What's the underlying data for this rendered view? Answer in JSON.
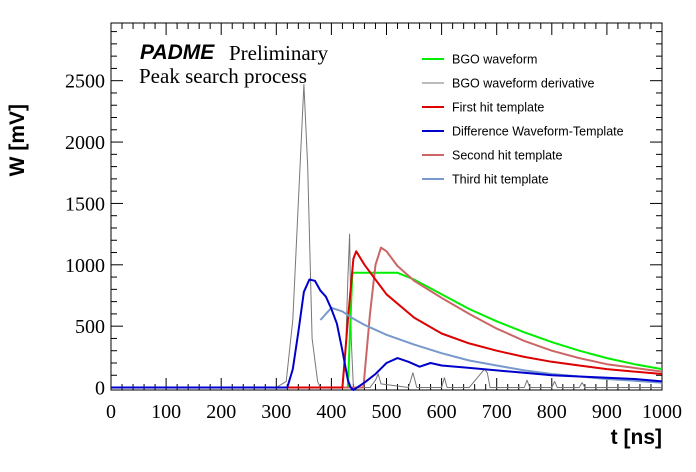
{
  "chart_data": {
    "type": "line",
    "annotation": {
      "brand": "PADME",
      "status": "Preliminary",
      "subtitle": "Peak search process"
    },
    "xlabel": "t [ns]",
    "ylabel": "W [mV]",
    "xlim": [
      0,
      1000
    ],
    "ylim": [
      -20,
      2970
    ],
    "x_ticks": [
      "0",
      "100",
      "200",
      "300",
      "400",
      "500",
      "600",
      "700",
      "800",
      "900",
      "1000"
    ],
    "y_ticks": [
      "0",
      "500",
      "1000",
      "1500",
      "2000",
      "2500"
    ],
    "legend_position": "top-right",
    "grid": false,
    "series": [
      {
        "name": "BGO waveform",
        "color": "#00ee00",
        "x": [
          0,
          430,
          438,
          440,
          450,
          500,
          520,
          550,
          600,
          650,
          700,
          750,
          800,
          850,
          900,
          950,
          1000
        ],
        "y": [
          0,
          0,
          935,
          935,
          935,
          935,
          935,
          880,
          760,
          640,
          540,
          450,
          370,
          300,
          240,
          190,
          150
        ]
      },
      {
        "name": "BGO waveform derivative",
        "color": "#777777",
        "x": [
          0,
          300,
          318,
          330,
          340,
          350,
          357,
          365,
          375,
          380,
          420,
          425,
          430,
          433,
          436,
          440,
          470,
          480,
          485,
          490,
          540,
          548,
          555,
          600,
          605,
          610,
          650,
          678,
          683,
          688,
          750,
          755,
          760,
          800,
          805,
          810,
          850,
          855,
          860,
          1000
        ],
        "y": [
          0,
          0,
          50,
          550,
          1500,
          2470,
          1800,
          400,
          50,
          0,
          0,
          200,
          900,
          1250,
          400,
          0,
          0,
          60,
          110,
          30,
          0,
          120,
          0,
          0,
          80,
          0,
          0,
          150,
          120,
          0,
          0,
          60,
          0,
          0,
          50,
          0,
          0,
          40,
          0,
          0
        ]
      },
      {
        "name": "First hit template",
        "color": "#dd0000",
        "x": [
          0,
          420,
          430,
          440,
          445,
          460,
          500,
          550,
          600,
          650,
          700,
          750,
          800,
          850,
          900,
          950,
          1000
        ],
        "y": [
          0,
          0,
          550,
          1050,
          1110,
          1000,
          760,
          570,
          440,
          360,
          300,
          250,
          210,
          180,
          150,
          130,
          110
        ]
      },
      {
        "name": "Difference Waveform-Template",
        "color": "#0000cc",
        "x": [
          0,
          320,
          330,
          340,
          350,
          360,
          370,
          380,
          390,
          400,
          410,
          420,
          430,
          435,
          440,
          460,
          480,
          500,
          520,
          540,
          560,
          580,
          600,
          650,
          700,
          750,
          800,
          850,
          900,
          950,
          1000
        ],
        "y": [
          0,
          0,
          150,
          450,
          780,
          880,
          870,
          790,
          740,
          640,
          520,
          300,
          60,
          0,
          -20,
          40,
          110,
          200,
          240,
          210,
          170,
          200,
          180,
          160,
          140,
          120,
          100,
          90,
          80,
          70,
          50
        ]
      },
      {
        "name": "Second hit template",
        "color": "#cc6666",
        "x": [
          0,
          458,
          470,
          480,
          490,
          500,
          520,
          550,
          600,
          650,
          700,
          750,
          800,
          850,
          900,
          950,
          1000
        ],
        "y": [
          0,
          0,
          600,
          1000,
          1140,
          1110,
          990,
          870,
          730,
          600,
          480,
          380,
          300,
          240,
          190,
          160,
          130
        ]
      },
      {
        "name": "Third hit template",
        "color": "#7799cc",
        "x": [
          380,
          400,
          420,
          440,
          460,
          500,
          550,
          600,
          650,
          700,
          750,
          800,
          850,
          900,
          950,
          1000
        ],
        "y": [
          550,
          650,
          620,
          560,
          510,
          430,
          350,
          280,
          220,
          180,
          140,
          110,
          90,
          70,
          55,
          40
        ]
      }
    ]
  }
}
